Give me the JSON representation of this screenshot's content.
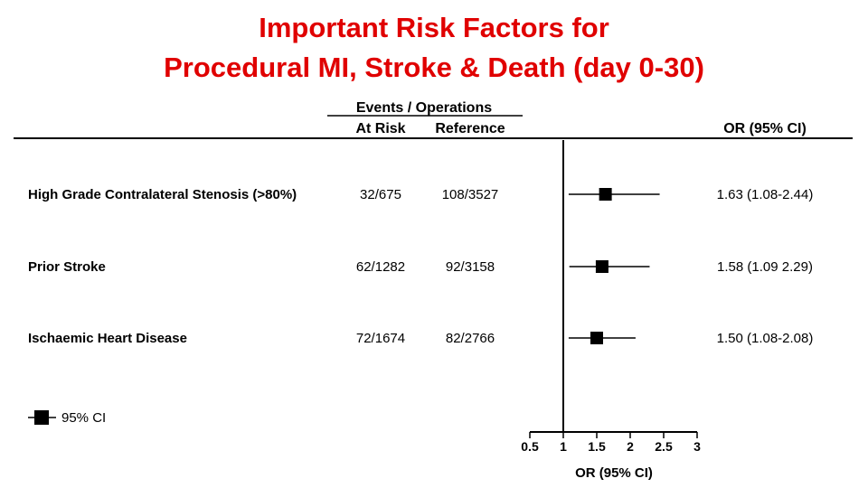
{
  "title_line1": "Important Risk Factors for",
  "title_line2": "Procedural MI, Stroke & Death (day 0-30)",
  "headers": {
    "group": "Events / Operations",
    "at_risk": "At Risk",
    "reference": "Reference",
    "or_ci": "OR (95% CI)"
  },
  "legend": {
    "label": "95% CI"
  },
  "chart_data": {
    "type": "forest",
    "xlabel": "OR (95% CI)",
    "xlim": [
      0.5,
      3
    ],
    "reference_line": 1,
    "ticks": [
      "0.5",
      "1",
      "1.5",
      "2",
      "2.5",
      "3"
    ],
    "tick_values": [
      0.5,
      1,
      1.5,
      2,
      2.5,
      3
    ],
    "rows": [
      {
        "label": "High Grade Contralateral Stenosis (>80%)",
        "at_risk": "32/675",
        "reference": "108/3527",
        "or": 1.63,
        "lo": 1.08,
        "hi": 2.44,
        "or_text": "1.63 (1.08-2.44)"
      },
      {
        "label": "Prior Stroke",
        "at_risk": "62/1282",
        "reference": "92/3158",
        "or": 1.58,
        "lo": 1.09,
        "hi": 2.29,
        "or_text": "1.58 (1.09 2.29)"
      },
      {
        "label": "Ischaemic Heart Disease",
        "at_risk": "72/1674",
        "reference": "82/2766",
        "or": 1.5,
        "lo": 1.08,
        "hi": 2.08,
        "or_text": "1.50 (1.08-2.08)"
      }
    ]
  }
}
